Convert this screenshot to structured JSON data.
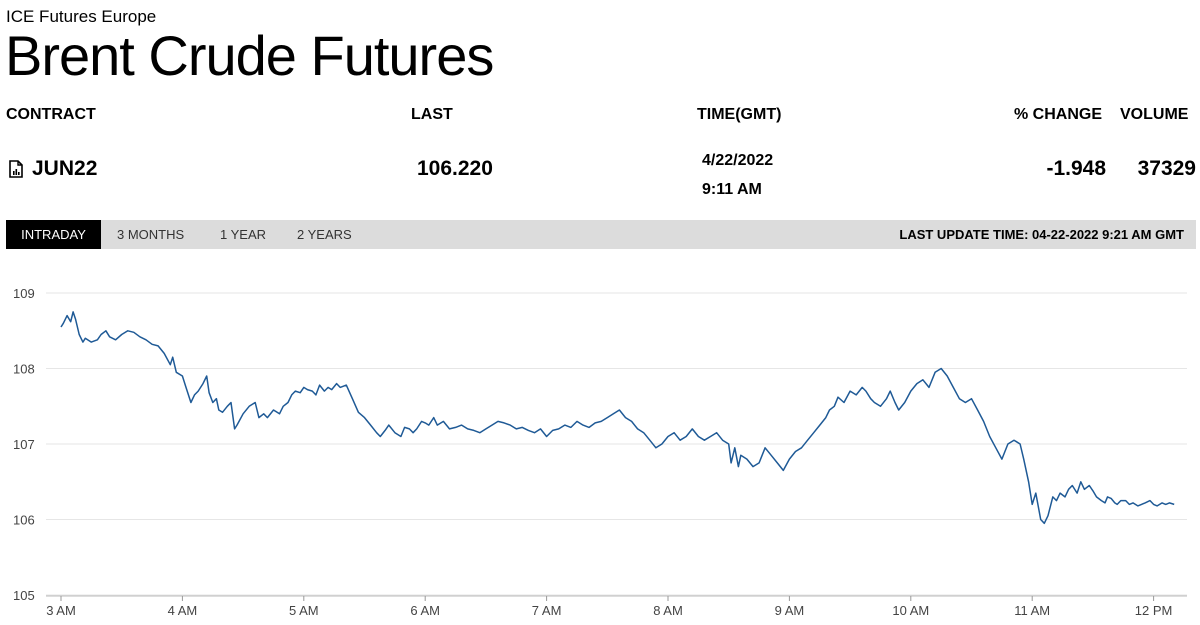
{
  "header": {
    "exchange": "ICE Futures Europe",
    "title": "Brent Crude Futures"
  },
  "columns": {
    "contract": "CONTRACT",
    "last": "LAST",
    "time": "TIME(GMT)",
    "pct_change": "% CHANGE",
    "volume": "VOLUME"
  },
  "quote": {
    "contract": "JUN22",
    "last": "106.220",
    "date": "4/22/2022",
    "time": "9:11 AM",
    "pct_change": "-1.948",
    "volume": "37329"
  },
  "tabs": [
    {
      "label": "INTRADAY",
      "active": true
    },
    {
      "label": "3 MONTHS",
      "active": false
    },
    {
      "label": "1 YEAR",
      "active": false
    },
    {
      "label": "2 YEARS",
      "active": false
    }
  ],
  "last_update": "LAST UPDATE TIME: 04-22-2022 9:21 AM GMT",
  "colors": {
    "line": "#1f5a96",
    "grid": "#e6e6e6",
    "tab_bar": "#dcdcdc",
    "tab_active": "#000000"
  },
  "chart_data": {
    "type": "line",
    "title": "",
    "xlabel": "",
    "ylabel": "",
    "ylim": [
      105,
      109
    ],
    "yticks": [
      105,
      106,
      107,
      108,
      109
    ],
    "xlim_hours": [
      3.0,
      12.25
    ],
    "xticks": [
      {
        "hour": 3,
        "label": "3 AM"
      },
      {
        "hour": 4,
        "label": "4 AM"
      },
      {
        "hour": 5,
        "label": "5 AM"
      },
      {
        "hour": 6,
        "label": "6 AM"
      },
      {
        "hour": 7,
        "label": "7 AM"
      },
      {
        "hour": 8,
        "label": "8 AM"
      },
      {
        "hour": 9,
        "label": "9 AM"
      },
      {
        "hour": 10,
        "label": "10 AM"
      },
      {
        "hour": 11,
        "label": "11 AM"
      },
      {
        "hour": 12,
        "label": "12 PM"
      }
    ],
    "grid": true,
    "series": [
      {
        "x": [
          3.0,
          3.02,
          3.05,
          3.08,
          3.1,
          3.12,
          3.15,
          3.18,
          3.2,
          3.25,
          3.3,
          3.33,
          3.37,
          3.4,
          3.45,
          3.5,
          3.55,
          3.6,
          3.65,
          3.7,
          3.75,
          3.8,
          3.85,
          3.9,
          3.92,
          3.95,
          4.0,
          4.03,
          4.07,
          4.1,
          4.13,
          4.17,
          4.2,
          4.22,
          4.25,
          4.28,
          4.3,
          4.33,
          4.37,
          4.4,
          4.43,
          4.45,
          4.5,
          4.55,
          4.6,
          4.63,
          4.67,
          4.7,
          4.75,
          4.8,
          4.83,
          4.87,
          4.9,
          4.93,
          4.97,
          5.0,
          5.03,
          5.07,
          5.1,
          5.13,
          5.17,
          5.2,
          5.23,
          5.27,
          5.3,
          5.35,
          5.4,
          5.45,
          5.5,
          5.55,
          5.6,
          5.63,
          5.67,
          5.7,
          5.75,
          5.8,
          5.83,
          5.87,
          5.9,
          5.93,
          5.97,
          6.0,
          6.03,
          6.07,
          6.1,
          6.15,
          6.2,
          6.25,
          6.3,
          6.35,
          6.4,
          6.45,
          6.5,
          6.55,
          6.6,
          6.65,
          6.7,
          6.75,
          6.8,
          6.85,
          6.9,
          6.95,
          7.0,
          7.05,
          7.1,
          7.15,
          7.2,
          7.25,
          7.3,
          7.35,
          7.4,
          7.45,
          7.5,
          7.55,
          7.6,
          7.65,
          7.7,
          7.75,
          7.8,
          7.85,
          7.9,
          7.95,
          8.0,
          8.05,
          8.1,
          8.15,
          8.2,
          8.25,
          8.3,
          8.35,
          8.4,
          8.45,
          8.5,
          8.52,
          8.55,
          8.58,
          8.6,
          8.65,
          8.7,
          8.75,
          8.8,
          8.85,
          8.9,
          8.95,
          9.0,
          9.05,
          9.1,
          9.15,
          9.2,
          9.25,
          9.3,
          9.33,
          9.37,
          9.4,
          9.45,
          9.5,
          9.55,
          9.6,
          9.63,
          9.67,
          9.7,
          9.75,
          9.8,
          9.83,
          9.87,
          9.9,
          9.95,
          10.0,
          10.05,
          10.1,
          10.15,
          10.2,
          10.25,
          10.3,
          10.35,
          10.4,
          10.45,
          10.5,
          10.55,
          10.6,
          10.65,
          10.7,
          10.75,
          10.8,
          10.85,
          10.9,
          10.93,
          10.97,
          11.0,
          11.03,
          11.07,
          11.1,
          11.13,
          11.17,
          11.2,
          11.23,
          11.27,
          11.3,
          11.33,
          11.37,
          11.4,
          11.43,
          11.47,
          11.5,
          11.53,
          11.57,
          11.6,
          11.62,
          11.65,
          11.68,
          11.7,
          11.73,
          11.77,
          11.8,
          11.83,
          11.87,
          11.9,
          11.93,
          11.97,
          12.0,
          12.03,
          12.07,
          12.1,
          12.13,
          12.17
        ],
        "y": [
          108.55,
          108.6,
          108.7,
          108.62,
          108.75,
          108.65,
          108.45,
          108.35,
          108.4,
          108.35,
          108.38,
          108.45,
          108.5,
          108.42,
          108.38,
          108.45,
          108.5,
          108.48,
          108.42,
          108.38,
          108.32,
          108.3,
          108.2,
          108.05,
          108.15,
          107.95,
          107.9,
          107.75,
          107.55,
          107.65,
          107.7,
          107.8,
          107.9,
          107.68,
          107.55,
          107.6,
          107.45,
          107.42,
          107.5,
          107.55,
          107.2,
          107.25,
          107.4,
          107.5,
          107.55,
          107.35,
          107.4,
          107.35,
          107.45,
          107.4,
          107.5,
          107.55,
          107.65,
          107.7,
          107.68,
          107.75,
          107.72,
          107.7,
          107.65,
          107.78,
          107.7,
          107.75,
          107.72,
          107.8,
          107.75,
          107.78,
          107.6,
          107.42,
          107.35,
          107.25,
          107.15,
          107.1,
          107.18,
          107.25,
          107.15,
          107.1,
          107.22,
          107.2,
          107.15,
          107.2,
          107.3,
          107.28,
          107.25,
          107.35,
          107.25,
          107.3,
          107.2,
          107.22,
          107.25,
          107.2,
          107.18,
          107.15,
          107.2,
          107.25,
          107.3,
          107.28,
          107.25,
          107.2,
          107.22,
          107.18,
          107.15,
          107.2,
          107.1,
          107.18,
          107.2,
          107.25,
          107.22,
          107.3,
          107.25,
          107.22,
          107.28,
          107.3,
          107.35,
          107.4,
          107.45,
          107.35,
          107.3,
          107.2,
          107.15,
          107.05,
          106.95,
          107.0,
          107.1,
          107.15,
          107.05,
          107.1,
          107.2,
          107.1,
          107.05,
          107.1,
          107.15,
          107.05,
          107.0,
          106.75,
          106.95,
          106.7,
          106.85,
          106.8,
          106.7,
          106.75,
          106.95,
          106.85,
          106.75,
          106.65,
          106.8,
          106.9,
          106.95,
          107.05,
          107.15,
          107.25,
          107.35,
          107.45,
          107.5,
          107.62,
          107.55,
          107.7,
          107.65,
          107.75,
          107.7,
          107.6,
          107.55,
          107.5,
          107.6,
          107.7,
          107.55,
          107.45,
          107.55,
          107.7,
          107.8,
          107.85,
          107.75,
          107.95,
          108.0,
          107.9,
          107.75,
          107.6,
          107.55,
          107.6,
          107.45,
          107.3,
          107.1,
          106.95,
          106.8,
          107.0,
          107.05,
          107.0,
          106.8,
          106.5,
          106.2,
          106.35,
          106.0,
          105.95,
          106.05,
          106.3,
          106.25,
          106.35,
          106.3,
          106.4,
          106.45,
          106.35,
          106.5,
          106.4,
          106.45,
          106.38,
          106.3,
          106.25,
          106.22,
          106.3,
          106.28,
          106.22,
          106.2,
          106.25,
          106.25,
          106.2,
          106.22,
          106.18,
          106.2,
          106.22,
          106.25,
          106.2,
          106.18,
          106.22,
          106.2,
          106.22,
          106.2
        ]
      }
    ]
  }
}
